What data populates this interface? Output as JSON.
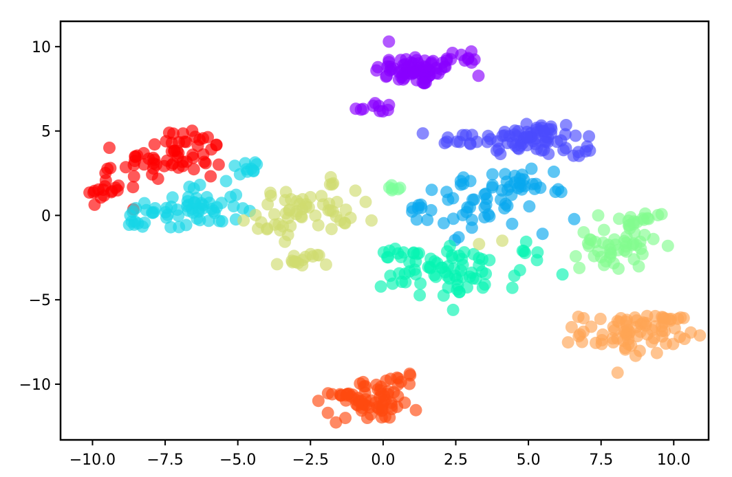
{
  "chart_data": {
    "type": "scatter",
    "title": "",
    "xlabel": "",
    "ylabel": "",
    "xlim": [
      -11.1,
      11.2
    ],
    "ylim": [
      -13.3,
      11.5
    ],
    "x_ticks": [
      -10,
      -7.5,
      -5,
      -2.5,
      0,
      2.5,
      5,
      7.5,
      10
    ],
    "x_tick_labels": [
      "−10.0",
      "−7.5",
      "−5.0",
      "−2.5",
      "0.0",
      "2.5",
      "5.0",
      "7.5",
      "10.0"
    ],
    "y_ticks": [
      10,
      5,
      0,
      -5,
      -10
    ],
    "y_tick_labels": [
      "10",
      "5",
      "0",
      "−5",
      "−10"
    ],
    "grid": false,
    "legend": "none",
    "series": [
      {
        "color": "#8800ff",
        "clusters": [
          {
            "cx": 1.2,
            "cy": 8.6,
            "sx": 0.75,
            "sy": 0.45,
            "n": 70
          },
          {
            "cx": -0.3,
            "cy": 6.4,
            "sx": 0.35,
            "sy": 0.2,
            "n": 10
          },
          {
            "cx": 2.9,
            "cy": 9.4,
            "sx": 0.2,
            "sy": 0.2,
            "n": 8
          }
        ]
      },
      {
        "color": "#4b4bfe",
        "clusters": [
          {
            "cx": 5.0,
            "cy": 4.6,
            "sx": 0.9,
            "sy": 0.55,
            "n": 65
          },
          {
            "cx": 2.6,
            "cy": 4.4,
            "sx": 0.45,
            "sy": 0.25,
            "n": 10
          },
          {
            "cx": 6.7,
            "cy": 3.8,
            "sx": 0.3,
            "sy": 0.2,
            "n": 8
          }
        ]
      },
      {
        "color": "#ff0000",
        "clusters": [
          {
            "cx": -7.2,
            "cy": 3.3,
            "sx": 0.9,
            "sy": 0.7,
            "n": 50
          },
          {
            "cx": -9.7,
            "cy": 1.6,
            "sx": 0.35,
            "sy": 0.5,
            "n": 18
          },
          {
            "cx": -6.6,
            "cy": 4.6,
            "sx": 0.35,
            "sy": 0.25,
            "n": 10
          }
        ]
      },
      {
        "color": "#16d6e6",
        "clusters": [
          {
            "cx": -6.5,
            "cy": 0.4,
            "sx": 0.8,
            "sy": 0.7,
            "n": 55
          },
          {
            "cx": -4.7,
            "cy": 2.9,
            "sx": 0.3,
            "sy": 0.2,
            "n": 10
          },
          {
            "cx": -8.4,
            "cy": -0.3,
            "sx": 0.25,
            "sy": 0.35,
            "n": 8
          }
        ]
      },
      {
        "color": "#cfdc6e",
        "clusters": [
          {
            "cx": -2.6,
            "cy": 0.3,
            "sx": 0.85,
            "sy": 0.6,
            "n": 45
          },
          {
            "cx": -2.8,
            "cy": -2.7,
            "sx": 0.45,
            "sy": 0.25,
            "n": 15
          },
          {
            "cx": -3.7,
            "cy": -0.7,
            "sx": 0.35,
            "sy": 0.3,
            "n": 8
          },
          {
            "cx": -1.9,
            "cy": 2.0,
            "sx": 0.2,
            "sy": 0.2,
            "n": 4
          }
        ]
      },
      {
        "color": "#07a8ee",
        "clusters": [
          {
            "cx": 3.5,
            "cy": 0.8,
            "sx": 1.1,
            "sy": 0.9,
            "n": 55
          },
          {
            "cx": 4.7,
            "cy": 2.0,
            "sx": 0.4,
            "sy": 0.3,
            "n": 10
          },
          {
            "cx": 1.4,
            "cy": 0.0,
            "sx": 0.25,
            "sy": 0.3,
            "n": 6
          },
          {
            "cx": 6.0,
            "cy": 1.5,
            "sx": 0.15,
            "sy": 0.1,
            "n": 3
          }
        ]
      },
      {
        "color": "#7bff9a",
        "clusters": [
          {
            "cx": 0.5,
            "cy": 1.6,
            "sx": 0.3,
            "sy": 0.1,
            "n": 6
          }
        ]
      },
      {
        "color": "#06f4b2",
        "clusters": [
          {
            "cx": 2.4,
            "cy": -3.4,
            "sx": 1.2,
            "sy": 0.8,
            "n": 65
          },
          {
            "cx": 0.7,
            "cy": -2.4,
            "sx": 0.5,
            "sy": 0.2,
            "n": 12
          },
          {
            "cx": 5.0,
            "cy": -2.4,
            "sx": 0.15,
            "sy": 0.4,
            "n": 6
          },
          {
            "cx": 6.1,
            "cy": -3.7,
            "sx": 0.1,
            "sy": 0.1,
            "n": 1
          }
        ]
      },
      {
        "color": "#83fc8f",
        "clusters": [
          {
            "cx": 8.0,
            "cy": -1.7,
            "sx": 0.6,
            "sy": 0.75,
            "n": 45
          },
          {
            "cx": 9.0,
            "cy": -0.2,
            "sx": 0.4,
            "sy": 0.2,
            "n": 12
          }
        ]
      },
      {
        "color": "#ffa455",
        "clusters": [
          {
            "cx": 8.5,
            "cy": -7.0,
            "sx": 0.85,
            "sy": 0.6,
            "n": 70
          },
          {
            "cx": 9.8,
            "cy": -6.3,
            "sx": 0.3,
            "sy": 0.3,
            "n": 10
          }
        ]
      },
      {
        "color": "#ff4a10",
        "clusters": [
          {
            "cx": -0.3,
            "cy": -11.0,
            "sx": 0.75,
            "sy": 0.6,
            "n": 55
          },
          {
            "cx": -1.6,
            "cy": -10.6,
            "sx": 0.3,
            "sy": 0.2,
            "n": 10
          },
          {
            "cx": 0.8,
            "cy": -9.7,
            "sx": 0.3,
            "sy": 0.2,
            "n": 8
          }
        ]
      }
    ],
    "outliers": [
      {
        "x": -0.4,
        "y": -0.3,
        "color": "#cfdc6e"
      },
      {
        "x": 4.1,
        "y": -1.5,
        "color": "#cfdc6e"
      },
      {
        "x": 3.3,
        "y": -1.7,
        "color": "#cfdc6e"
      },
      {
        "x": -4.8,
        "y": -0.3,
        "color": "#cfdc6e"
      },
      {
        "x": 0.2,
        "y": 10.3,
        "color": "#8800ff"
      },
      {
        "x": 7.4,
        "y": 0.0,
        "color": "#83fc8f"
      },
      {
        "x": 9.3,
        "y": -1.4,
        "color": "#83fc8f"
      },
      {
        "x": 6.9,
        "y": -1.0,
        "color": "#83fc8f"
      },
      {
        "x": -1.9,
        "y": -11.7,
        "color": "#ff4a10"
      },
      {
        "x": -1.3,
        "y": -12.0,
        "color": "#ff4a10"
      },
      {
        "x": -8.7,
        "y": 0.0,
        "color": "#16d6e6"
      }
    ]
  }
}
